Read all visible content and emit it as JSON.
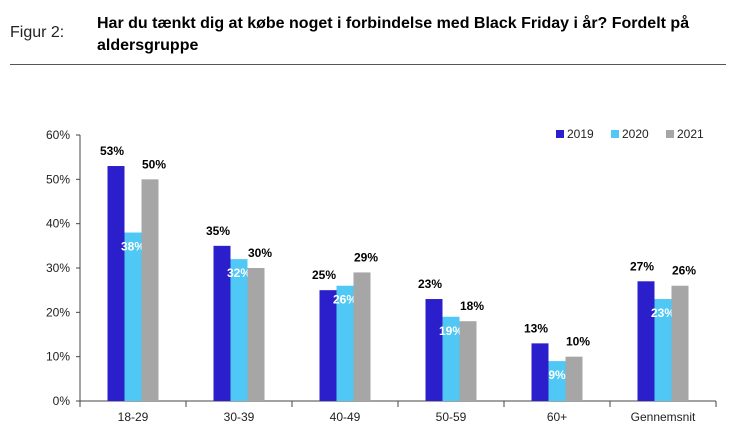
{
  "figure_label": "Figur 2:",
  "title": "Har du tænkt dig at købe noget i forbindelse med Black Friday i år? Fordelt på aldersgruppe",
  "colors": {
    "2019": "#2b1fcc",
    "2020": "#4fc8f5",
    "2021": "#a6a6a6"
  },
  "chart_data": {
    "type": "bar",
    "title": "Har du tænkt dig at købe noget i forbindelse med Black Friday i år? Fordelt på aldersgruppe",
    "categories": [
      "18-29",
      "30-39",
      "40-49",
      "50-59",
      "60+",
      "Gennemsnit"
    ],
    "series": [
      {
        "name": "2019",
        "values": [
          53,
          35,
          25,
          23,
          13,
          27
        ]
      },
      {
        "name": "2020",
        "values": [
          38,
          32,
          26,
          19,
          9,
          23
        ]
      },
      {
        "name": "2021",
        "values": [
          50,
          30,
          29,
          18,
          10,
          26
        ]
      }
    ],
    "xlabel": "",
    "ylabel": "",
    "ylim": [
      0,
      60
    ],
    "yticks": [
      0,
      10,
      20,
      30,
      40,
      50,
      60
    ],
    "value_suffix": "%",
    "grid": false,
    "legend": "top-right"
  }
}
